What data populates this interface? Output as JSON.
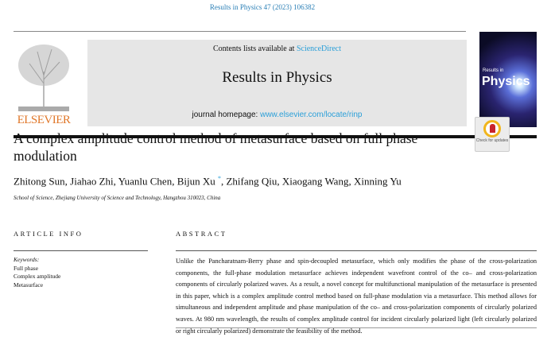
{
  "journal_ref": "Results in Physics 47 (2023) 106382",
  "header": {
    "contents_prefix": "Contents lists available at ",
    "contents_link": "ScienceDirect",
    "journal_title": "Results in Physics",
    "homepage_prefix": "journal homepage: ",
    "homepage_link": "www.elsevier.com/locate/rinp",
    "publisher_logo": "ELSEVIER",
    "cover_small": "Results in",
    "cover_big": "Physics"
  },
  "check_updates": "Check for updates",
  "article": {
    "title": "A complex amplitude control method of metasurface based on full phase modulation",
    "authors_before": "Zhitong Sun, Jiahao Zhi, Yuanlu Chen, Bijun Xu",
    "corresponding_mark": "*",
    "authors_after": ", Zhifang Qiu, Xiaogang Wang, Xinning Yu",
    "affiliation": "School of Science, Zhejiang University of Science and Technology, Hangzhou 310023, China"
  },
  "article_info": {
    "heading": "ARTICLE INFO",
    "keywords_label": "Keywords:",
    "keywords": [
      "Full phase",
      "Complex amplitude",
      "Metasurface"
    ]
  },
  "abstract": {
    "heading": "ABSTRACT",
    "text": "Unlike the Pancharatnam-Berry phase and spin-decoupled metasurface, which only modifies the phase of the cross-polarization components, the full-phase modulation metasurface achieves independent wavefront control of the co– and cross-polarization components of circularly polarized waves. As a result, a novel concept for multifunctional manipulation of the metasurface is presented in this paper, which is a complex amplitude control method based on full-phase modulation via a metasurface. This method allows for simultaneous and independent amplitude and phase manipulation of the co– and cross-polarization components of circularly polarized waves. At 980 nm wavelength, the results of complex amplitude control for incident circularly polarized light (left circularly polarized or right circularly polarized) demonstrate the feasibility of the method."
  }
}
